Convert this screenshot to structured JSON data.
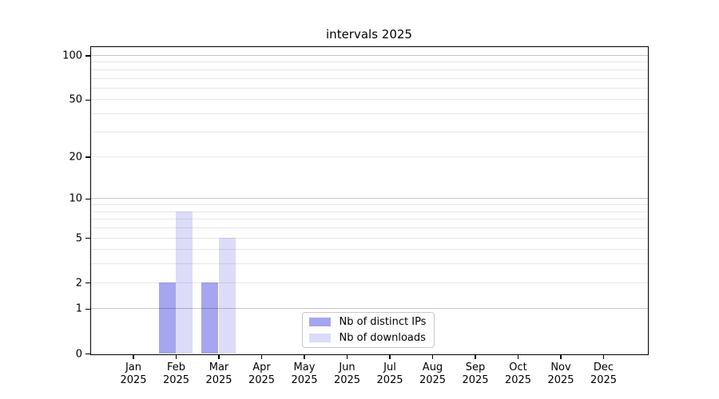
{
  "chart_data": {
    "type": "bar",
    "title": "intervals 2025",
    "categories": [
      "Jan\n2025",
      "Feb\n2025",
      "Mar\n2025",
      "Apr\n2025",
      "May\n2025",
      "Jun\n2025",
      "Jul\n2025",
      "Aug\n2025",
      "Sep\n2025",
      "Oct\n2025",
      "Nov\n2025",
      "Dec\n2025"
    ],
    "series": [
      {
        "name": "Nb of distinct IPs",
        "color": "#a5a5f0",
        "values": [
          0,
          2,
          2,
          0,
          0,
          0,
          0,
          0,
          0,
          0,
          0,
          0
        ]
      },
      {
        "name": "Nb of downloads",
        "color": "#dcdcf8",
        "values": [
          0,
          8,
          5,
          0,
          0,
          0,
          0,
          0,
          0,
          0,
          0,
          0
        ]
      }
    ],
    "xlabel": "",
    "ylabel": "",
    "yscale": "log1p",
    "ylim": [
      0,
      115
    ],
    "y_tick_labels": [
      "0",
      "1",
      "2",
      "5",
      "10",
      "20",
      "50",
      "100"
    ],
    "y_tick_values": [
      0,
      1,
      2,
      5,
      10,
      20,
      50,
      100
    ],
    "y_major_gridlines": [
      1,
      10,
      100
    ],
    "y_minor_gridlines": [
      2,
      3,
      4,
      5,
      6,
      7,
      8,
      9,
      20,
      30,
      40,
      50,
      60,
      70,
      80,
      90
    ],
    "grid": true,
    "legend": {
      "position": "lower center",
      "entries": [
        "Nb of distinct IPs",
        "Nb of downloads"
      ]
    }
  },
  "colors": {
    "background": "#ffffff",
    "spine": "#000000",
    "legend_border": "#c9c9c9"
  }
}
